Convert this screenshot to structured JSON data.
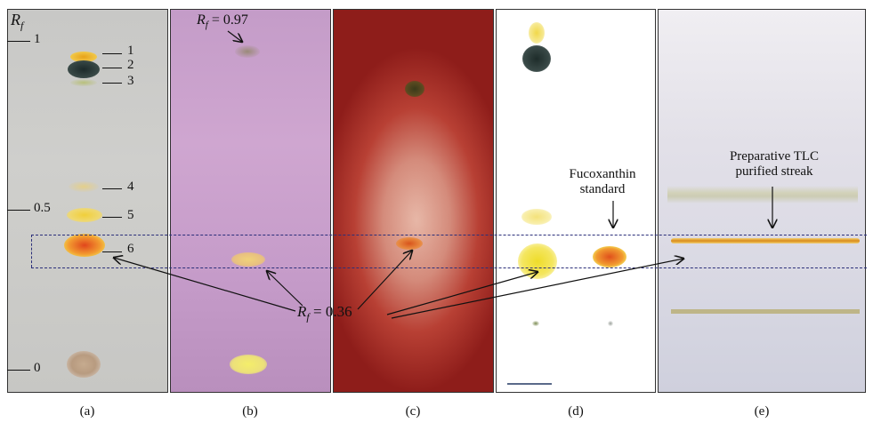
{
  "axis": {
    "symbol": "R",
    "subscript": "f",
    "ticks": [
      "1",
      "0.5",
      "0"
    ]
  },
  "spot_labels": [
    "1",
    "2",
    "3",
    "4",
    "5",
    "6"
  ],
  "annotations": {
    "top_rf_prefix": "R",
    "top_rf_sub": "f",
    "top_rf_value": " = 0.97",
    "center_rf_prefix": "R",
    "center_rf_sub": "f",
    "center_rf_value": " = 0.36",
    "standard_line1": "Fucoxanthin",
    "standard_line2": "standard",
    "streak_line1": "Preparative TLC",
    "streak_line2": "purified streak"
  },
  "captions": [
    "(a)",
    "(b)",
    "(c)",
    "(d)",
    "(e)"
  ],
  "colors": {
    "dashed_box": "#2b2f7a",
    "fucoxanthin_orange": "#e3741c",
    "yellow_spot": "#f2d23a"
  }
}
